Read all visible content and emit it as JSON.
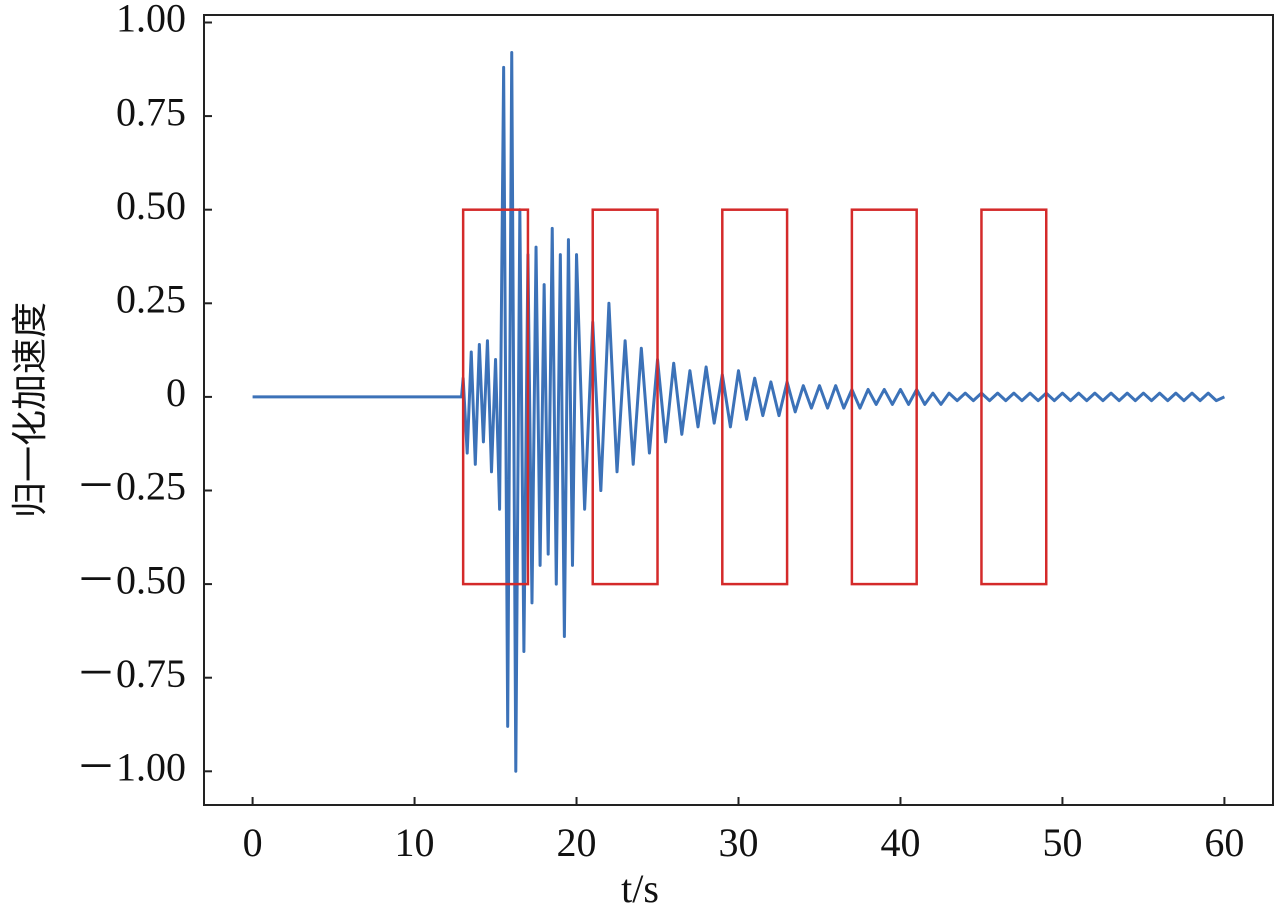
{
  "chart_data": {
    "type": "line",
    "ylabel": "归一化加速度",
    "xlabel": "t/s",
    "xlim": [
      -3,
      63
    ],
    "ylim": [
      -1.09,
      1.02
    ],
    "xticks": [
      0,
      10,
      20,
      30,
      40,
      50,
      60
    ],
    "yticks": [
      {
        "value": 1,
        "label": "1.00"
      },
      {
        "value": 0.75,
        "label": "0.75"
      },
      {
        "value": 0.5,
        "label": "0.50"
      },
      {
        "value": 0.25,
        "label": "0.25"
      },
      0,
      {
        "value": -0.25,
        "label": "－0.25"
      },
      {
        "value": -0.5,
        "label": "－0.50"
      },
      {
        "value": -0.75,
        "label": "－0.75"
      },
      {
        "value": -1,
        "label": "－1.00"
      }
    ],
    "x": [
      0,
      12.9,
      13,
      13.25,
      13.5,
      13.75,
      14,
      14.25,
      14.5,
      14.75,
      15,
      15.25,
      15.5,
      15.75,
      16,
      16.25,
      16.5,
      16.75,
      17,
      17.25,
      17.5,
      17.75,
      18,
      18.25,
      18.5,
      18.75,
      19,
      19.25,
      19.5,
      19.75,
      20,
      20.5,
      21,
      21.5,
      22,
      22.5,
      23,
      23.5,
      24,
      24.5,
      25,
      25.5,
      26,
      26.5,
      27,
      27.5,
      28,
      28.5,
      29,
      29.5,
      30,
      30.5,
      31,
      31.5,
      32,
      32.5,
      33,
      33.5,
      34,
      34.5,
      35,
      35.5,
      36,
      36.5,
      37,
      37.5,
      38,
      38.5,
      39,
      39.5,
      40,
      40.5,
      41,
      41.5,
      42,
      42.5,
      43,
      43.5,
      44,
      44.5,
      45,
      45.5,
      46,
      46.5,
      47,
      47.5,
      48,
      48.5,
      49,
      49.5,
      50,
      50.5,
      51,
      51.5,
      52,
      52.5,
      53,
      53.5,
      54,
      54.5,
      55,
      55.5,
      56,
      56.5,
      57,
      57.5,
      58,
      58.5,
      59,
      59.5,
      60
    ],
    "series": [
      {
        "color": "#3c72b8",
        "values": [
          0,
          0,
          0.05,
          -0.15,
          0.12,
          -0.18,
          0.14,
          -0.12,
          0.15,
          -0.2,
          0.1,
          -0.3,
          0.88,
          -0.88,
          0.92,
          -1.0,
          0.5,
          -0.68,
          0.38,
          -0.55,
          0.4,
          -0.45,
          0.3,
          -0.42,
          0.45,
          -0.5,
          0.38,
          -0.64,
          0.42,
          -0.45,
          0.38,
          -0.3,
          0.2,
          -0.25,
          0.25,
          -0.2,
          0.15,
          -0.18,
          0.13,
          -0.15,
          0.1,
          -0.12,
          0.09,
          -0.1,
          0.07,
          -0.08,
          0.08,
          -0.07,
          0.06,
          -0.08,
          0.07,
          -0.06,
          0.05,
          -0.05,
          0.04,
          -0.05,
          0.04,
          -0.04,
          0.03,
          -0.03,
          0.03,
          -0.03,
          0.03,
          -0.03,
          0.02,
          -0.03,
          0.02,
          -0.02,
          0.02,
          -0.02,
          0.02,
          -0.02,
          0.02,
          -0.02,
          0.01,
          -0.02,
          0.01,
          -0.01,
          0.01,
          -0.01,
          0.01,
          -0.01,
          0.01,
          -0.01,
          0.01,
          -0.01,
          0.01,
          -0.01,
          0.01,
          -0.01,
          0.01,
          -0.01,
          0.01,
          -0.01,
          0.01,
          -0.01,
          0.01,
          -0.01,
          0.01,
          -0.01,
          0.01,
          -0.01,
          0.01,
          -0.01,
          0.01,
          -0.01,
          0.01,
          -0.01,
          0.01,
          -0.01,
          0
        ]
      }
    ],
    "windows_color": "#d42a2a",
    "windows": [
      {
        "x0": 13,
        "x1": 17,
        "y0": -0.5,
        "y1": 0.5
      },
      {
        "x0": 21,
        "x1": 25,
        "y0": -0.5,
        "y1": 0.5
      },
      {
        "x0": 29,
        "x1": 33,
        "y0": -0.5,
        "y1": 0.5
      },
      {
        "x0": 37,
        "x1": 41,
        "y0": -0.5,
        "y1": 0.5
      },
      {
        "x0": 45,
        "x1": 49,
        "y0": -0.5,
        "y1": 0.5
      }
    ]
  }
}
